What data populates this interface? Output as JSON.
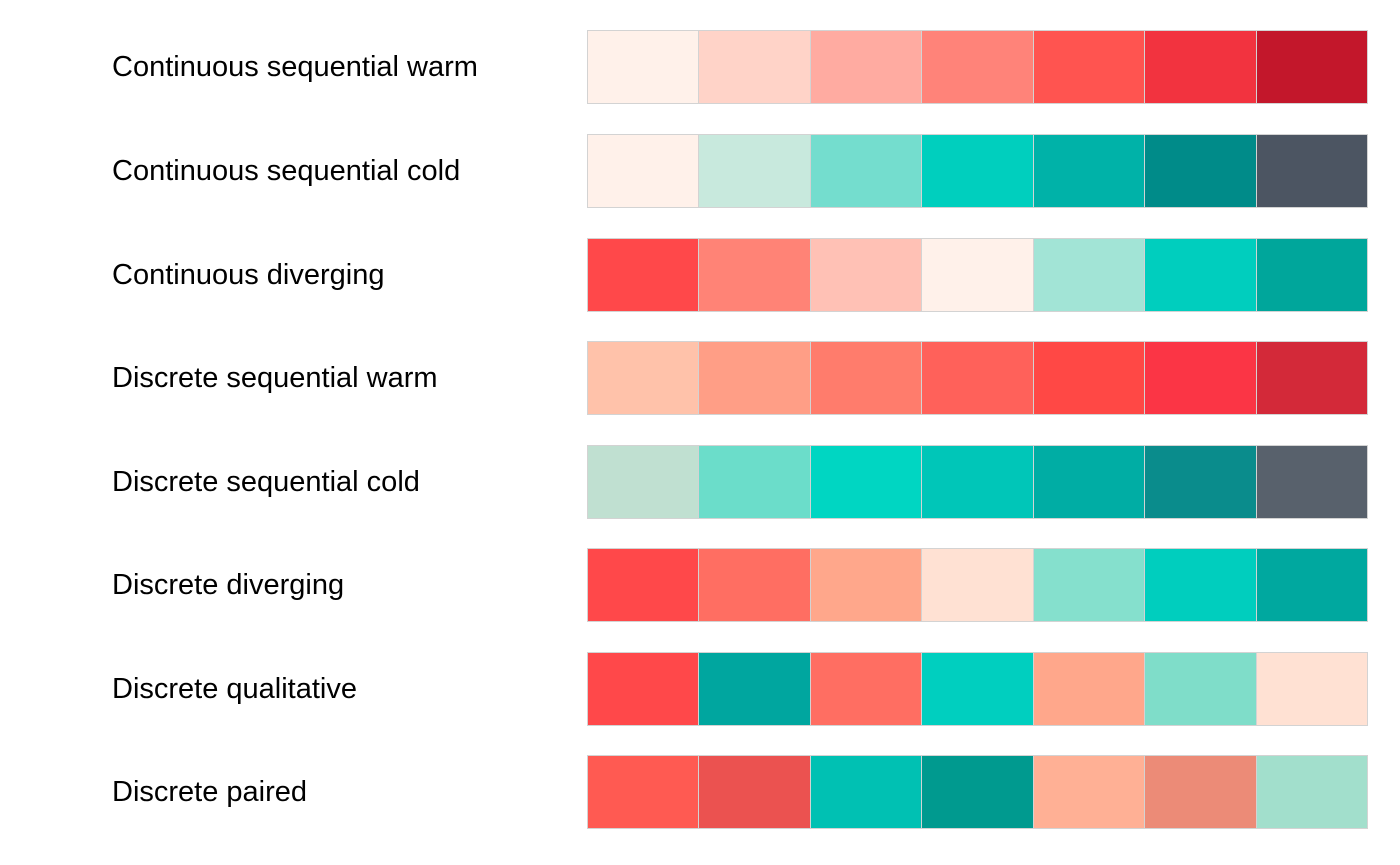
{
  "palettes": [
    {
      "label": "Continuous sequential warm",
      "colors": [
        "#fff1ea",
        "#ffd3c8",
        "#ffaba1",
        "#ff8379",
        "#ff5450",
        "#f2333f",
        "#c3172b"
      ]
    },
    {
      "label": "Continuous sequential cold",
      "colors": [
        "#fff1ea",
        "#c8e9dd",
        "#74ddce",
        "#00cfbe",
        "#00b2a8",
        "#008b89",
        "#4c5562"
      ]
    },
    {
      "label": "Continuous diverging",
      "colors": [
        "#ff484a",
        "#ff8376",
        "#ffc1b5",
        "#fff1ea",
        "#a2e4d6",
        "#00cebe",
        "#00a69b"
      ]
    },
    {
      "label": "Discrete sequential warm",
      "colors": [
        "#ffc2aa",
        "#ff9e86",
        "#ff7c6c",
        "#ff615a",
        "#ff4845",
        "#fb3545",
        "#d32939"
      ]
    },
    {
      "label": "Discrete sequential cold",
      "colors": [
        "#c0e0d1",
        "#6bddca",
        "#00d6c2",
        "#00c6b8",
        "#00ada4",
        "#0a8c8c",
        "#58616c"
      ]
    },
    {
      "label": "Discrete diverging",
      "colors": [
        "#ff484a",
        "#ff6e62",
        "#ffa78b",
        "#ffe1d3",
        "#85e0cd",
        "#00cebe",
        "#00a89f"
      ]
    },
    {
      "label": "Discrete qualitative",
      "colors": [
        "#ff484a",
        "#00a69f",
        "#ff6e62",
        "#00cfbf",
        "#ffa78b",
        "#7fddc9",
        "#ffe1d3"
      ]
    },
    {
      "label": "Discrete paired",
      "colors": [
        "#ff5a52",
        "#eb5250",
        "#00c1b3",
        "#009a8f",
        "#ffb095",
        "#ec8b77",
        "#a2dfcc"
      ]
    }
  ]
}
